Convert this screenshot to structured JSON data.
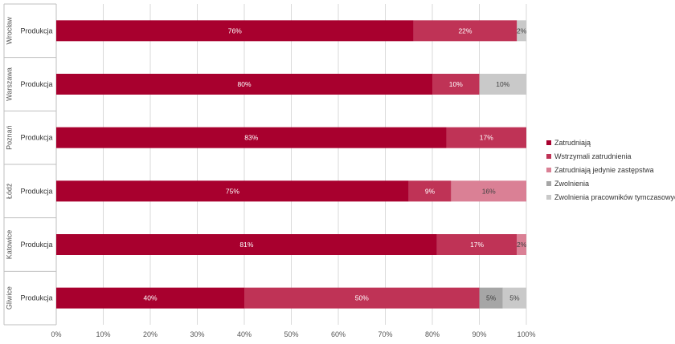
{
  "chart_data": {
    "type": "bar",
    "orientation": "horizontal",
    "stacked": true,
    "xlim": [
      0,
      100
    ],
    "x_ticks": [
      "0%",
      "10%",
      "20%",
      "30%",
      "40%",
      "50%",
      "60%",
      "70%",
      "80%",
      "90%",
      "100%"
    ],
    "grid": "vertical",
    "legend_position": "right",
    "categories": [
      {
        "group": "Wrocław",
        "label": "Produkcja"
      },
      {
        "group": "Warszawa",
        "label": "Produkcja"
      },
      {
        "group": "Poznań",
        "label": "Produkcja"
      },
      {
        "group": "Łódź",
        "label": "Produkcja"
      },
      {
        "group": "Katowice",
        "label": "Produkcja"
      },
      {
        "group": "Gliwice",
        "label": "Produkcja"
      }
    ],
    "series": [
      {
        "name": "Zatrudniają",
        "color": "#a8002e",
        "values": [
          76,
          80,
          83,
          75,
          81,
          40
        ],
        "labels": [
          "76%",
          "80%",
          "83%",
          "75%",
          "81%",
          "40%"
        ]
      },
      {
        "name": "Wstrzymali zatrudnienia",
        "color": "#bf3356",
        "values": [
          22,
          10,
          17,
          9,
          17,
          50
        ],
        "labels": [
          "22%",
          "10%",
          "17%",
          "9%",
          "17%",
          "50%"
        ]
      },
      {
        "name": "Zatrudniają jedynie zastępstwa",
        "color": "#da8095",
        "values": [
          0,
          0,
          0,
          16,
          2,
          0
        ],
        "labels": [
          "",
          "",
          "",
          "16%",
          "2%",
          ""
        ]
      },
      {
        "name": "Zwolnienia",
        "color": "#a6a6a6",
        "values": [
          0,
          0,
          0,
          0,
          0,
          5
        ],
        "labels": [
          "",
          "",
          "",
          "",
          "",
          "5%"
        ]
      },
      {
        "name": "Zwolnienia pracowników tymczasowych",
        "color": "#c9c9c9",
        "values": [
          2,
          10,
          0,
          0,
          0,
          5
        ],
        "labels": [
          "2%",
          "10%",
          "",
          "",
          "",
          "5%"
        ]
      }
    ]
  }
}
